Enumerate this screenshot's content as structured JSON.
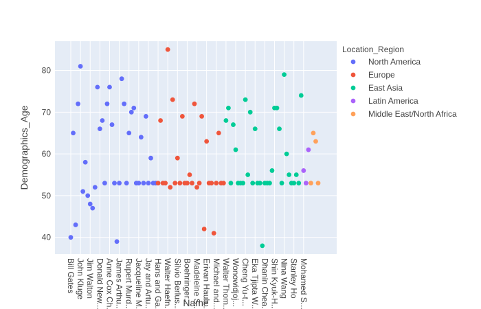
{
  "chart_data": {
    "type": "scatter",
    "xlabel": "Name",
    "ylabel": "Demographics_Age",
    "ylim": [
      36,
      87
    ],
    "yticks": [
      40,
      50,
      60,
      70,
      80
    ],
    "grid": true,
    "legend_title": "Location_Region",
    "legend_position": "right",
    "x_tick_labels": [
      "Bill Gates",
      "John Kluge",
      "Jim Walton",
      "Donald New...",
      "Anne Cox Ch...",
      "James Arthu...",
      "Rupert Murd...",
      "Jacqueline M...",
      "Jay and Artu...",
      "Hans and Ga...",
      "Walter Haefn...",
      "Silvio Berlus...",
      "Boehringer...",
      "Madeleine S...",
      "Erivan Haub...",
      "Michael and...",
      "Walter Thom...",
      "Wonowidjoj...",
      "Cheng Yu-t...",
      "Eka Tjipta W...",
      "Dhanin Chea...",
      "Shin Kyuk-H...",
      "Nina Wang",
      "Stanley Ho",
      "Mohamed S..."
    ],
    "series": [
      {
        "name": "North America",
        "color": "#636efa",
        "x": [
          1,
          2,
          3,
          4,
          5,
          6,
          7,
          8,
          9,
          10,
          11,
          12,
          13,
          14,
          15,
          16,
          17,
          18,
          19,
          20,
          21,
          22,
          23,
          24,
          25,
          26,
          27,
          28,
          29,
          30,
          31,
          32,
          33,
          34,
          35,
          36
        ],
        "y": [
          40,
          65,
          43,
          72,
          81,
          51,
          58,
          50,
          48,
          47,
          52,
          76,
          66,
          68,
          53,
          72,
          76,
          67,
          53,
          39,
          53,
          78,
          72,
          53,
          65,
          70,
          71,
          53,
          53,
          64,
          53,
          69,
          53,
          59,
          53,
          53
        ]
      },
      {
        "name": "Europe",
        "color": "#ef553b",
        "x": [
          37,
          38,
          39,
          40,
          41,
          42,
          43,
          44,
          45,
          46,
          47,
          48,
          49,
          50,
          51,
          52,
          53,
          54,
          55,
          56,
          57,
          58,
          59,
          60,
          61,
          62,
          63,
          64
        ],
        "y": [
          53,
          68,
          53,
          53,
          85,
          52,
          73,
          53,
          59,
          53,
          69,
          53,
          53,
          55,
          53,
          72,
          52,
          53,
          69,
          42,
          63,
          53,
          53,
          41,
          53,
          65,
          53,
          53
        ]
      },
      {
        "name": "East Asia",
        "color": "#00cc96",
        "x": [
          65,
          66,
          67,
          68,
          69,
          70,
          71,
          72,
          73,
          74,
          75,
          76,
          77,
          78,
          79,
          80,
          81,
          82,
          83,
          84,
          85,
          86,
          87,
          88,
          89,
          90,
          91,
          92,
          93,
          94,
          95,
          96
        ],
        "y": [
          68,
          71,
          53,
          67,
          61,
          53,
          53,
          53,
          73,
          55,
          70,
          53,
          66,
          53,
          53,
          38,
          53,
          53,
          53,
          56,
          71,
          71,
          66,
          53,
          79,
          60,
          55,
          53,
          53,
          55,
          53,
          74
        ]
      },
      {
        "name": "Latin America",
        "color": "#ab63fa",
        "x": [
          97,
          98,
          99
        ],
        "y": [
          56,
          53,
          61
        ]
      },
      {
        "name": "Middle East/North Africa",
        "color": "#ffa15a",
        "x": [
          100,
          101,
          102,
          103
        ],
        "y": [
          53,
          65,
          63,
          53
        ]
      }
    ]
  }
}
